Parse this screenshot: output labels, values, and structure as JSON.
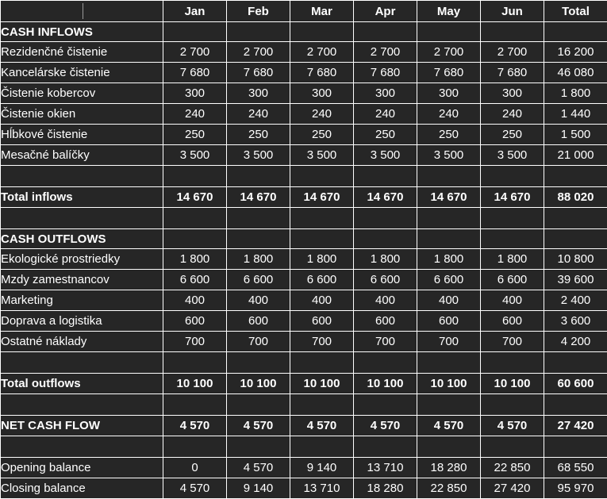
{
  "columns": [
    "Jan",
    "Feb",
    "Mar",
    "Apr",
    "May",
    "Jun",
    "Total"
  ],
  "rows": [
    {
      "kind": "section",
      "label": "CASH INFLOWS",
      "values": []
    },
    {
      "kind": "data",
      "label": "Rezidenčné čistenie",
      "values": [
        "2 700",
        "2 700",
        "2 700",
        "2 700",
        "2 700",
        "2 700",
        "16 200"
      ]
    },
    {
      "kind": "data",
      "label": "Kancelárske čistenie",
      "values": [
        "7 680",
        "7 680",
        "7 680",
        "7 680",
        "7 680",
        "7 680",
        "46 080"
      ]
    },
    {
      "kind": "data",
      "label": "Čistenie kobercov",
      "values": [
        "300",
        "300",
        "300",
        "300",
        "300",
        "300",
        "1 800"
      ]
    },
    {
      "kind": "data",
      "label": "Čistenie okien",
      "values": [
        "240",
        "240",
        "240",
        "240",
        "240",
        "240",
        "1 440"
      ]
    },
    {
      "kind": "data",
      "label": "Hĺbkové čistenie",
      "values": [
        "250",
        "250",
        "250",
        "250",
        "250",
        "250",
        "1 500"
      ]
    },
    {
      "kind": "data",
      "label": "Mesačné balíčky",
      "values": [
        "3 500",
        "3 500",
        "3 500",
        "3 500",
        "3 500",
        "3 500",
        "21 000"
      ]
    },
    {
      "kind": "blank",
      "label": "",
      "values": []
    },
    {
      "kind": "total",
      "label": "Total inflows",
      "values": [
        "14 670",
        "14 670",
        "14 670",
        "14 670",
        "14 670",
        "14 670",
        "88 020"
      ]
    },
    {
      "kind": "blank",
      "label": "",
      "values": []
    },
    {
      "kind": "section",
      "label": "CASH OUTFLOWS",
      "values": []
    },
    {
      "kind": "data",
      "label": "Ekologické prostriedky",
      "values": [
        "1 800",
        "1 800",
        "1 800",
        "1 800",
        "1 800",
        "1 800",
        "10 800"
      ]
    },
    {
      "kind": "data",
      "label": "Mzdy zamestnancov",
      "values": [
        "6 600",
        "6 600",
        "6 600",
        "6 600",
        "6 600",
        "6 600",
        "39 600"
      ]
    },
    {
      "kind": "data",
      "label": "Marketing",
      "values": [
        "400",
        "400",
        "400",
        "400",
        "400",
        "400",
        "2 400"
      ]
    },
    {
      "kind": "data",
      "label": "Doprava a logistika",
      "values": [
        "600",
        "600",
        "600",
        "600",
        "600",
        "600",
        "3 600"
      ]
    },
    {
      "kind": "data",
      "label": "Ostatné náklady",
      "values": [
        "700",
        "700",
        "700",
        "700",
        "700",
        "700",
        "4 200"
      ]
    },
    {
      "kind": "blank",
      "label": "",
      "values": []
    },
    {
      "kind": "total",
      "label": "Total outflows",
      "values": [
        "10 100",
        "10 100",
        "10 100",
        "10 100",
        "10 100",
        "10 100",
        "60 600"
      ]
    },
    {
      "kind": "blank",
      "label": "",
      "values": []
    },
    {
      "kind": "total",
      "label": "NET CASH FLOW",
      "values": [
        "4 570",
        "4 570",
        "4 570",
        "4 570",
        "4 570",
        "4 570",
        "27 420"
      ]
    },
    {
      "kind": "blank",
      "label": "",
      "values": []
    },
    {
      "kind": "data",
      "label": "Opening balance",
      "values": [
        "0",
        "4 570",
        "9 140",
        "13 710",
        "18 280",
        "22 850",
        "68 550"
      ]
    },
    {
      "kind": "data",
      "label": "Closing balance",
      "values": [
        "4 570",
        "9 140",
        "13 710",
        "18 280",
        "22 850",
        "27 420",
        "95 970"
      ]
    }
  ]
}
